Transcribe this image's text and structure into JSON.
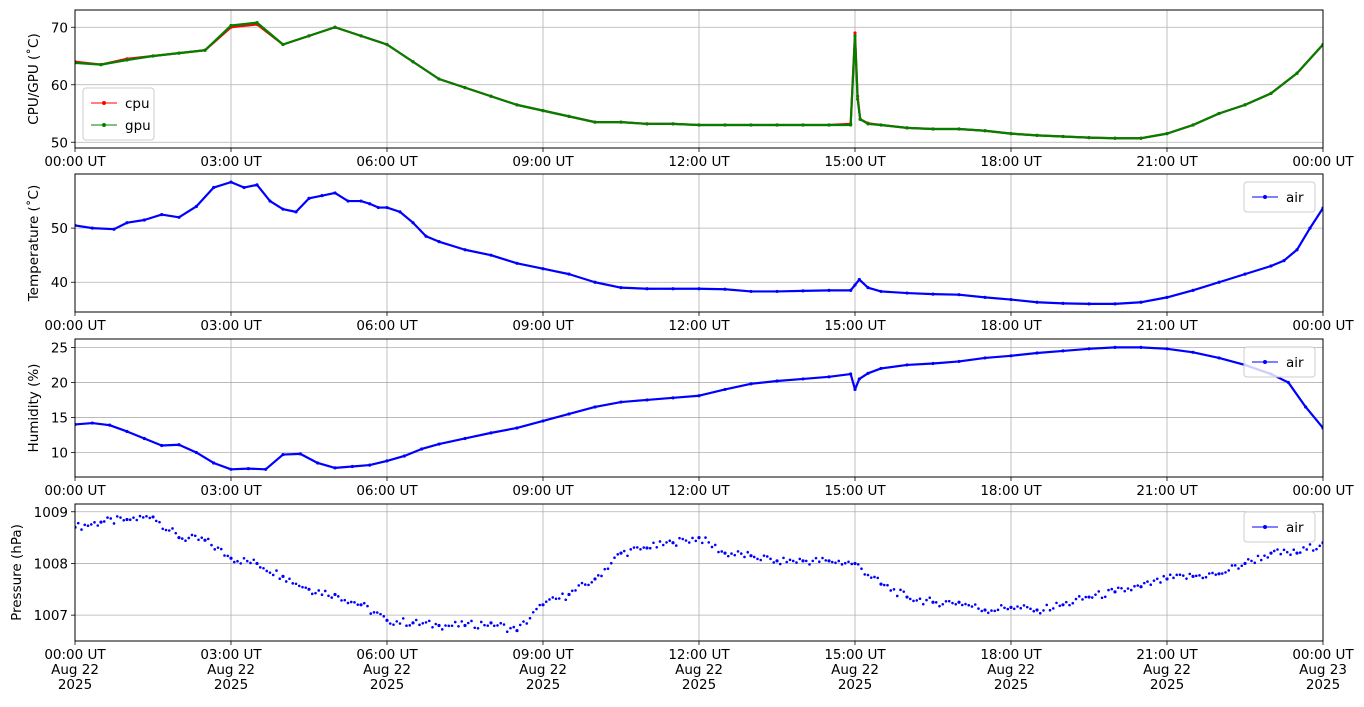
{
  "chart_data": [
    {
      "type": "line",
      "ylabel": "CPU/GPU (˚C)",
      "ylim": [
        49,
        73
      ],
      "yticks": [
        50,
        60,
        70
      ],
      "ytick_labels": [
        "50",
        "60",
        "70"
      ],
      "xlim": [
        "2025-08-22 00:00",
        "2025-08-23 00:00"
      ],
      "xtick_labels": [
        "00:00 UT",
        "03:00 UT",
        "06:00 UT",
        "09:00 UT",
        "12:00 UT",
        "15:00 UT",
        "18:00 UT",
        "21:00 UT",
        "00:00 UT"
      ],
      "grid": true,
      "legend_position": "lower-left",
      "series": [
        {
          "name": "cpu",
          "color": "#ff0000",
          "x": [
            "00:00",
            "00:30",
            "01:00",
            "01:30",
            "02:00",
            "02:30",
            "03:00",
            "03:30",
            "04:00",
            "04:30",
            "05:00",
            "05:30",
            "06:00",
            "06:30",
            "07:00",
            "07:30",
            "08:00",
            "08:30",
            "09:00",
            "09:30",
            "10:00",
            "10:30",
            "11:00",
            "11:30",
            "12:00",
            "12:30",
            "13:00",
            "13:30",
            "14:00",
            "14:30",
            "14:55",
            "15:00",
            "15:03",
            "15:06",
            "15:15",
            "15:30",
            "16:00",
            "16:30",
            "17:00",
            "17:30",
            "18:00",
            "18:30",
            "19:00",
            "19:30",
            "20:00",
            "20:30",
            "21:00",
            "21:30",
            "22:00",
            "22:30",
            "23:00",
            "23:30",
            "24:00"
          ],
          "values": [
            64,
            63.5,
            64.5,
            65,
            65.5,
            66,
            70,
            70.5,
            67,
            68.5,
            70,
            68.5,
            67,
            64,
            61,
            59.5,
            58,
            56.5,
            55.5,
            54.5,
            53.5,
            53.5,
            53.2,
            53.2,
            53,
            53,
            53,
            53,
            53,
            53,
            53.2,
            69,
            58,
            54,
            53.3,
            53,
            52.5,
            52.3,
            52.3,
            52,
            51.5,
            51.2,
            51,
            50.8,
            50.7,
            50.7,
            51.5,
            53,
            55,
            56.5,
            58.5,
            62,
            67
          ]
        },
        {
          "name": "gpu",
          "color": "#008000",
          "x": [
            "00:00",
            "00:30",
            "01:00",
            "01:30",
            "02:00",
            "02:30",
            "03:00",
            "03:30",
            "04:00",
            "04:30",
            "05:00",
            "05:30",
            "06:00",
            "06:30",
            "07:00",
            "07:30",
            "08:00",
            "08:30",
            "09:00",
            "09:30",
            "10:00",
            "10:30",
            "11:00",
            "11:30",
            "12:00",
            "12:30",
            "13:00",
            "13:30",
            "14:00",
            "14:30",
            "14:55",
            "15:00",
            "15:03",
            "15:06",
            "15:15",
            "15:30",
            "16:00",
            "16:30",
            "17:00",
            "17:30",
            "18:00",
            "18:30",
            "19:00",
            "19:30",
            "20:00",
            "20:30",
            "21:00",
            "21:30",
            "22:00",
            "22:30",
            "23:00",
            "23:30",
            "24:00"
          ],
          "values": [
            63.8,
            63.5,
            64.3,
            65,
            65.5,
            66,
            70.3,
            70.8,
            67,
            68.5,
            70,
            68.5,
            67,
            64,
            61,
            59.5,
            58,
            56.5,
            55.5,
            54.5,
            53.5,
            53.5,
            53.2,
            53.2,
            53,
            53,
            53,
            53,
            53,
            53,
            53,
            68.5,
            57.5,
            54,
            53.2,
            53,
            52.5,
            52.3,
            52.3,
            52,
            51.5,
            51.2,
            51,
            50.8,
            50.7,
            50.7,
            51.5,
            53,
            55,
            56.5,
            58.5,
            62,
            67
          ]
        }
      ]
    },
    {
      "type": "line",
      "ylabel": "Temperature (˚C)",
      "ylim": [
        34.5,
        60
      ],
      "yticks": [
        40,
        50
      ],
      "ytick_labels": [
        "40",
        "50"
      ],
      "xlim": [
        "2025-08-22 00:00",
        "2025-08-23 00:00"
      ],
      "xtick_labels": [
        "00:00 UT",
        "03:00 UT",
        "06:00 UT",
        "09:00 UT",
        "12:00 UT",
        "15:00 UT",
        "18:00 UT",
        "21:00 UT",
        "00:00 UT"
      ],
      "grid": true,
      "legend_position": "upper-right",
      "series": [
        {
          "name": "air",
          "color": "#0000ff",
          "x": [
            "00:00",
            "00:20",
            "00:45",
            "01:00",
            "01:20",
            "01:40",
            "02:00",
            "02:20",
            "02:40",
            "03:00",
            "03:15",
            "03:30",
            "03:45",
            "04:00",
            "04:15",
            "04:30",
            "04:45",
            "05:00",
            "05:15",
            "05:30",
            "05:40",
            "05:50",
            "06:00",
            "06:15",
            "06:30",
            "06:45",
            "07:00",
            "07:30",
            "08:00",
            "08:30",
            "09:00",
            "09:30",
            "10:00",
            "10:30",
            "11:00",
            "11:30",
            "12:00",
            "12:30",
            "13:00",
            "13:30",
            "14:00",
            "14:30",
            "14:55",
            "15:00",
            "15:05",
            "15:15",
            "15:30",
            "16:00",
            "16:30",
            "17:00",
            "17:30",
            "18:00",
            "18:30",
            "19:00",
            "19:30",
            "20:00",
            "20:30",
            "21:00",
            "21:30",
            "22:00",
            "22:30",
            "23:00",
            "23:15",
            "23:30",
            "23:45",
            "24:00"
          ],
          "values": [
            50.5,
            50,
            49.8,
            51,
            51.5,
            52.5,
            52,
            54,
            57.5,
            58.5,
            57.5,
            58,
            55,
            53.5,
            53,
            55.5,
            56,
            56.5,
            55,
            55,
            54.5,
            53.8,
            53.8,
            53,
            51,
            48.5,
            47.5,
            46,
            45,
            43.5,
            42.5,
            41.5,
            40,
            39,
            38.8,
            38.8,
            38.8,
            38.7,
            38.3,
            38.3,
            38.4,
            38.5,
            38.5,
            39.5,
            40.5,
            39,
            38.3,
            38,
            37.8,
            37.7,
            37.2,
            36.8,
            36.3,
            36.1,
            36,
            36,
            36.3,
            37.2,
            38.5,
            40,
            41.5,
            43,
            44,
            46,
            50,
            53.7
          ]
        }
      ]
    },
    {
      "type": "line",
      "ylabel": "Humidity (%)",
      "ylim": [
        6.5,
        26.2
      ],
      "yticks": [
        10,
        15,
        20,
        25
      ],
      "ytick_labels": [
        "10",
        "15",
        "20",
        "25"
      ],
      "xlim": [
        "2025-08-22 00:00",
        "2025-08-23 00:00"
      ],
      "xtick_labels": [
        "00:00 UT",
        "03:00 UT",
        "06:00 UT",
        "09:00 UT",
        "12:00 UT",
        "15:00 UT",
        "18:00 UT",
        "21:00 UT",
        "00:00 UT"
      ],
      "grid": true,
      "legend_position": "upper-right",
      "series": [
        {
          "name": "air",
          "color": "#0000ff",
          "x": [
            "00:00",
            "00:20",
            "00:40",
            "01:00",
            "01:20",
            "01:40",
            "02:00",
            "02:20",
            "02:40",
            "03:00",
            "03:20",
            "03:40",
            "04:00",
            "04:20",
            "04:40",
            "05:00",
            "05:20",
            "05:40",
            "06:00",
            "06:20",
            "06:40",
            "07:00",
            "07:30",
            "08:00",
            "08:30",
            "09:00",
            "09:30",
            "10:00",
            "10:30",
            "11:00",
            "11:30",
            "12:00",
            "12:30",
            "13:00",
            "13:30",
            "14:00",
            "14:30",
            "14:55",
            "15:00",
            "15:05",
            "15:15",
            "15:30",
            "16:00",
            "16:30",
            "17:00",
            "17:30",
            "18:00",
            "18:30",
            "19:00",
            "19:30",
            "20:00",
            "20:30",
            "21:00",
            "21:30",
            "22:00",
            "22:30",
            "23:00",
            "23:20",
            "23:40",
            "24:00"
          ],
          "values": [
            14,
            14.2,
            13.9,
            13,
            12,
            11,
            11.1,
            10,
            8.5,
            7.6,
            7.7,
            7.6,
            9.7,
            9.8,
            8.5,
            7.8,
            8,
            8.2,
            8.8,
            9.5,
            10.5,
            11.2,
            12,
            12.8,
            13.5,
            14.5,
            15.5,
            16.5,
            17.2,
            17.5,
            17.8,
            18.1,
            19,
            19.8,
            20.2,
            20.5,
            20.8,
            21.2,
            19,
            20.5,
            21.3,
            22,
            22.5,
            22.7,
            23,
            23.5,
            23.8,
            24.2,
            24.5,
            24.8,
            25,
            25,
            24.8,
            24.3,
            23.5,
            22.5,
            21.2,
            20,
            16.5,
            13.5
          ]
        }
      ]
    },
    {
      "type": "scatter",
      "ylabel": "Pressure (hPa)",
      "ylim": [
        1006.5,
        1009.15
      ],
      "yticks": [
        1007,
        1008,
        1009
      ],
      "ytick_labels": [
        "1007",
        "1008",
        "1009"
      ],
      "xlim": [
        "2025-08-22 00:00",
        "2025-08-23 00:00"
      ],
      "xtick_labels": [
        "00:00 UT\nAug 22\n2025",
        "03:00 UT\nAug 22\n2025",
        "06:00 UT\nAug 22\n2025",
        "09:00 UT\nAug 22\n2025",
        "12:00 UT\nAug 22\n2025",
        "15:00 UT\nAug 22\n2025",
        "18:00 UT\nAug 22\n2025",
        "21:00 UT\nAug 22\n2025",
        "00:00 UT\nAug 23\n2025"
      ],
      "grid": true,
      "legend_position": "upper-right",
      "series": [
        {
          "name": "air",
          "color": "#0000ff",
          "x": [
            "00:00",
            "00:30",
            "01:00",
            "01:30",
            "02:00",
            "02:30",
            "03:00",
            "03:30",
            "04:00",
            "04:30",
            "05:00",
            "05:30",
            "06:00",
            "06:30",
            "07:00",
            "07:30",
            "08:00",
            "08:30",
            "09:00",
            "09:30",
            "10:00",
            "10:30",
            "11:00",
            "11:30",
            "12:00",
            "12:30",
            "13:00",
            "13:30",
            "14:00",
            "14:30",
            "15:00",
            "15:30",
            "16:00",
            "16:30",
            "17:00",
            "17:30",
            "18:00",
            "18:30",
            "19:00",
            "19:30",
            "20:00",
            "20:30",
            "21:00",
            "21:30",
            "22:00",
            "22:30",
            "23:00",
            "23:30",
            "24:00"
          ],
          "values": [
            1008.7,
            1008.8,
            1008.85,
            1008.9,
            1008.5,
            1008.45,
            1008.1,
            1008.0,
            1007.75,
            1007.5,
            1007.4,
            1007.2,
            1006.9,
            1006.85,
            1006.8,
            1006.8,
            1006.85,
            1006.7,
            1007.2,
            1007.4,
            1007.7,
            1008.2,
            1008.3,
            1008.4,
            1008.5,
            1008.2,
            1008.15,
            1008.05,
            1008.05,
            1008.05,
            1008.0,
            1007.6,
            1007.35,
            1007.25,
            1007.25,
            1007.1,
            1007.15,
            1007.1,
            1007.2,
            1007.35,
            1007.45,
            1007.55,
            1007.7,
            1007.75,
            1007.8,
            1008.0,
            1008.2,
            1008.2,
            1008.4
          ]
        }
      ]
    }
  ]
}
